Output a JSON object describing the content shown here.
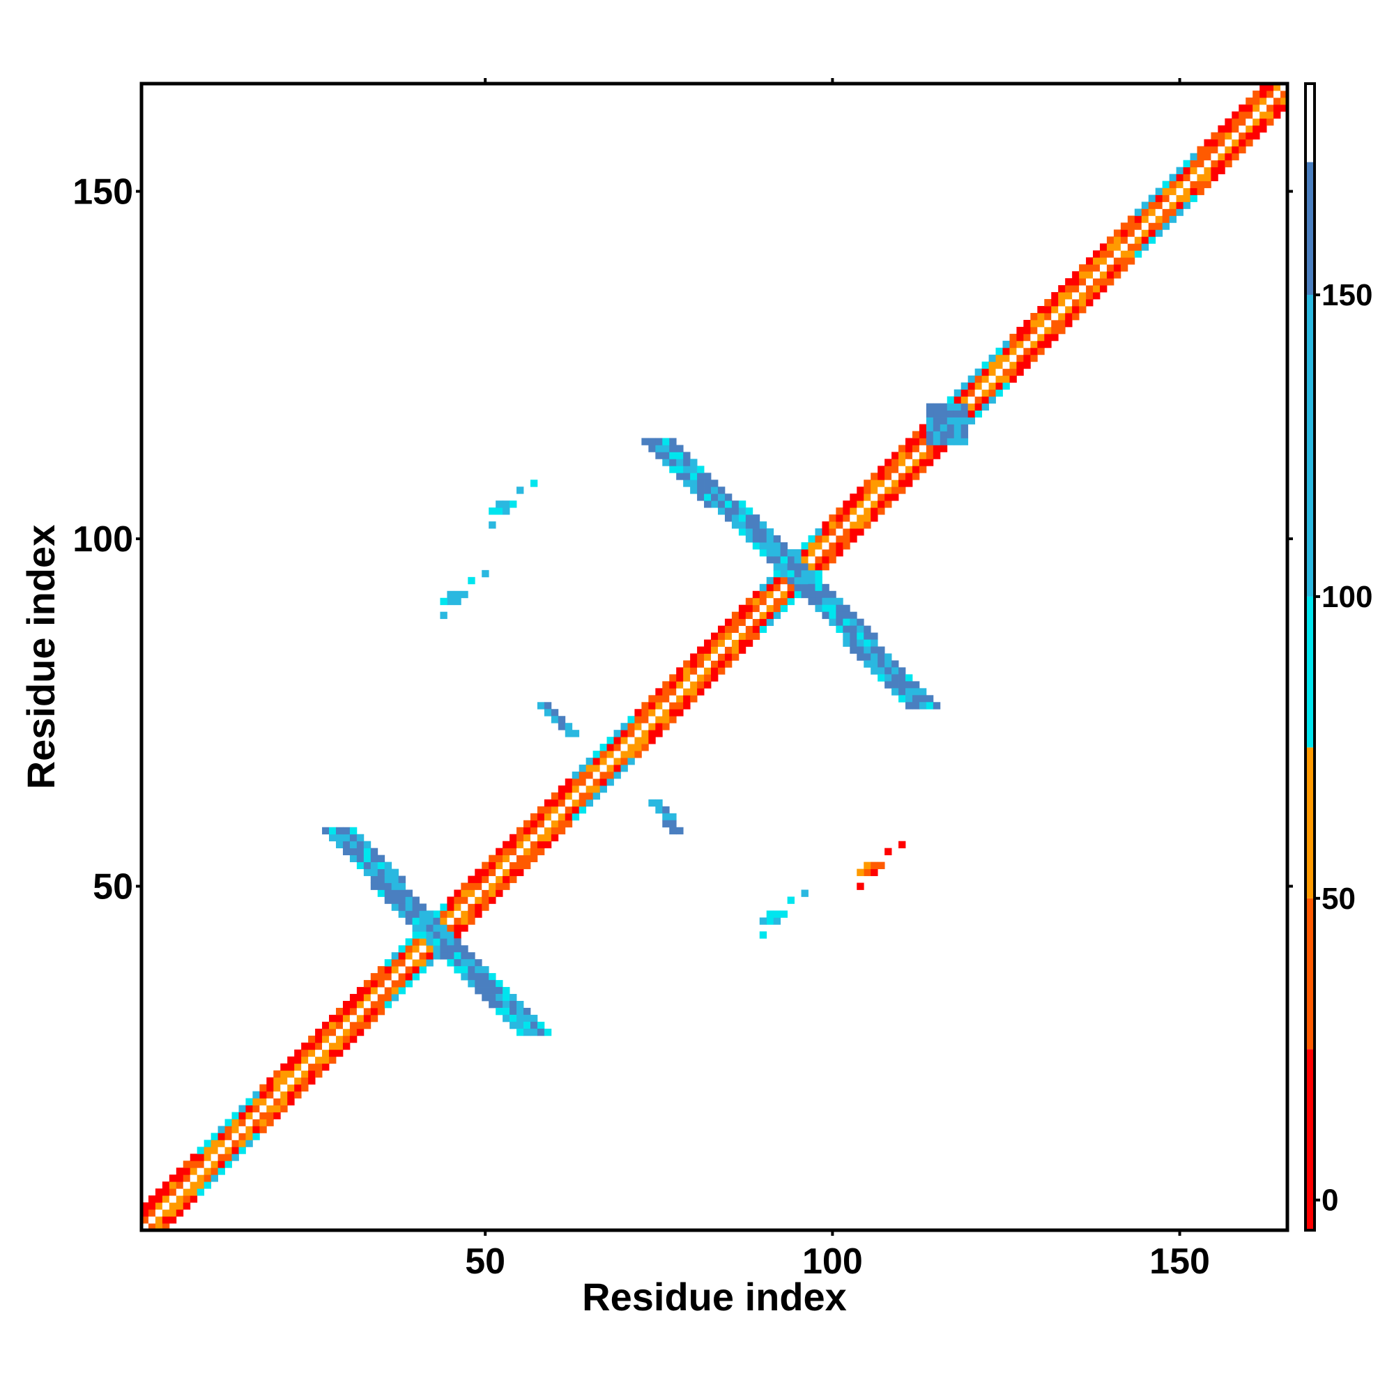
{
  "chart_data": {
    "type": "heatmap",
    "title": "",
    "xlabel": "Residue index",
    "ylabel": "Residue index",
    "xlim": [
      1,
      165
    ],
    "ylim": [
      1,
      165
    ],
    "x_ticks": [
      50,
      100,
      150
    ],
    "y_ticks": [
      50,
      100,
      150
    ],
    "grid": false,
    "colorbar": {
      "position": "right",
      "range": [
        -5,
        185
      ],
      "ticks": [
        0,
        50,
        100,
        150
      ],
      "bands": [
        {
          "from": -5,
          "to": 25,
          "color": "#ff0000"
        },
        {
          "from": 25,
          "to": 50,
          "color": "#ff5a00"
        },
        {
          "from": 50,
          "to": 75,
          "color": "#ff9a00"
        },
        {
          "from": 75,
          "to": 100,
          "color": "#00e5ee"
        },
        {
          "from": 100,
          "to": 150,
          "color": "#2ab8e0"
        },
        {
          "from": 150,
          "to": 172,
          "color": "#4a7fc0"
        },
        {
          "from": 172,
          "to": 185,
          "color": "#ffffff"
        }
      ]
    },
    "features": [
      {
        "kind": "diagonal",
        "from": 1,
        "to": 165,
        "band_width": 3
      },
      {
        "kind": "antiparallel",
        "center": [
          43,
          43
        ],
        "ends": [
          [
            29,
            58
          ],
          [
            57,
            29
          ]
        ],
        "width": 2
      },
      {
        "kind": "antiparallel",
        "center": [
          95,
          95
        ],
        "ends": [
          [
            75,
            114
          ],
          [
            113,
            76
          ]
        ],
        "width": 2
      },
      {
        "kind": "block",
        "x": [
          114,
          119
        ],
        "y": [
          114,
          119
        ]
      },
      {
        "kind": "segment",
        "from": [
          58,
          76
        ],
        "to": [
          62,
          72
        ],
        "width": 2
      },
      {
        "kind": "segment",
        "from": [
          74,
          62
        ],
        "to": [
          77,
          58
        ],
        "width": 2
      },
      {
        "kind": "cluster",
        "x": 52,
        "y": 104
      },
      {
        "kind": "cluster",
        "x": 105,
        "y": 52
      },
      {
        "kind": "cluster",
        "x": 45,
        "y": 91
      },
      {
        "kind": "cluster",
        "x": 91,
        "y": 45
      }
    ]
  }
}
